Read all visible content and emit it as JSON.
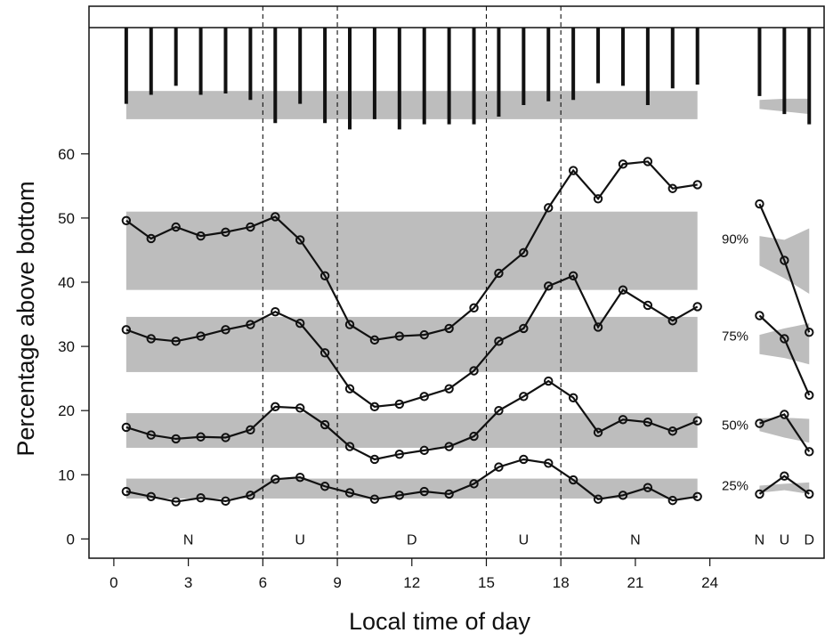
{
  "chart_data": {
    "type": "line",
    "xlabel": "Local time of day",
    "ylabel": "Percentage above bottom",
    "x_ticks": [
      "0",
      "3",
      "6",
      "9",
      "12",
      "15",
      "18",
      "21",
      "24"
    ],
    "y_ticks": [
      "0",
      "10",
      "20",
      "30",
      "40",
      "50",
      "60"
    ],
    "xlim": [
      -1,
      28.6
    ],
    "ylim": [
      -3,
      83
    ],
    "grid": false,
    "hours": [
      0.5,
      1.5,
      2.5,
      3.5,
      4.5,
      5.5,
      6.5,
      7.5,
      8.5,
      9.5,
      10.5,
      11.5,
      12.5,
      13.5,
      14.5,
      15.5,
      16.5,
      17.5,
      18.5,
      19.5,
      20.5,
      21.5,
      22.5,
      23.5
    ],
    "period_boundaries": [
      6,
      9,
      15,
      18
    ],
    "period_labels": [
      {
        "label": "N",
        "x": 3
      },
      {
        "label": "U",
        "x": 7.5
      },
      {
        "label": "D",
        "x": 12
      },
      {
        "label": "U",
        "x": 16.5
      },
      {
        "label": "N",
        "x": 21
      }
    ],
    "series": [
      {
        "name": "25%",
        "values": [
          7.4,
          6.6,
          5.8,
          6.4,
          5.9,
          6.8,
          9.3,
          9.6,
          8.2,
          7.2,
          6.2,
          6.8,
          7.4,
          7.0,
          8.6,
          11.2,
          12.4,
          11.8,
          9.2,
          6.2,
          6.8,
          8.0,
          6.0,
          6.6
        ],
        "band": [
          6.3,
          9.4
        ],
        "side_x": [
          26,
          27,
          28
        ],
        "side_values": [
          7.0,
          9.8,
          7.0
        ],
        "side_band": [
          [
            7.2,
            8.3
          ],
          [
            7.6,
            8.6
          ],
          [
            7.0,
            8.8
          ]
        ]
      },
      {
        "name": "50%",
        "values": [
          17.4,
          16.2,
          15.6,
          15.9,
          15.8,
          17.0,
          20.6,
          20.4,
          17.8,
          14.4,
          12.4,
          13.2,
          13.8,
          14.4,
          16.0,
          20.0,
          22.2,
          24.6,
          22.0,
          16.6,
          18.6,
          18.2,
          16.8,
          18.4
        ],
        "band": [
          14.2,
          19.6
        ],
        "side_x": [
          26,
          27,
          28
        ],
        "side_values": [
          18.0,
          19.4,
          13.6
        ],
        "side_band": [
          [
            16.8,
            18.8
          ],
          [
            15.8,
            18.9
          ],
          [
            15.0,
            18.7
          ]
        ]
      },
      {
        "name": "75%",
        "values": [
          32.6,
          31.2,
          30.8,
          31.6,
          32.6,
          33.4,
          35.4,
          33.6,
          29.0,
          23.4,
          20.6,
          21.0,
          22.2,
          23.4,
          26.2,
          30.8,
          32.8,
          39.4,
          41.0,
          33.0,
          38.8,
          36.4,
          34.0,
          36.2
        ],
        "band": [
          26.0,
          34.6
        ],
        "side_x": [
          26,
          27,
          28
        ],
        "side_values": [
          34.8,
          31.2,
          22.4
        ],
        "side_band": [
          [
            28.8,
            31.8
          ],
          [
            28.2,
            32.8
          ],
          [
            27.2,
            33.6
          ]
        ]
      },
      {
        "name": "90%",
        "values": [
          49.6,
          46.8,
          48.6,
          47.2,
          47.8,
          48.6,
          50.2,
          46.6,
          41.0,
          33.4,
          31.0,
          31.6,
          31.8,
          32.8,
          36.0,
          41.4,
          44.6,
          51.6,
          57.4,
          53.0,
          58.4,
          58.8,
          54.6,
          55.2
        ],
        "band": [
          38.8,
          51.0
        ],
        "side_x": [
          26,
          27,
          28
        ],
        "side_values": [
          52.2,
          43.4,
          32.2
        ],
        "side_band": [
          [
            42.6,
            47.2
          ],
          [
            40.6,
            46.6
          ],
          [
            38.2,
            48.4
          ]
        ]
      }
    ],
    "depth_panel": {
      "type": "range-bars",
      "bar_ends": [
        67.8,
        69.2,
        70.6,
        69.2,
        69.4,
        68.4,
        64.8,
        67.8,
        64.8,
        63.8,
        65.4,
        63.8,
        64.6,
        64.6,
        64.6,
        65.8,
        67.6,
        68.2,
        68.4,
        71.0,
        70.6,
        67.6,
        70.2,
        70.8
      ],
      "band": [
        65.4,
        69.8
      ],
      "side_x": [
        26,
        27,
        28
      ],
      "side_bar_ends": [
        69.0,
        66.2,
        64.6
      ],
      "side_band": [
        [
          67.0,
          68.4
        ],
        [
          66.6,
          68.6
        ],
        [
          66.2,
          68.6
        ]
      ]
    },
    "side_periods": [
      "N",
      "U",
      "D"
    ]
  }
}
